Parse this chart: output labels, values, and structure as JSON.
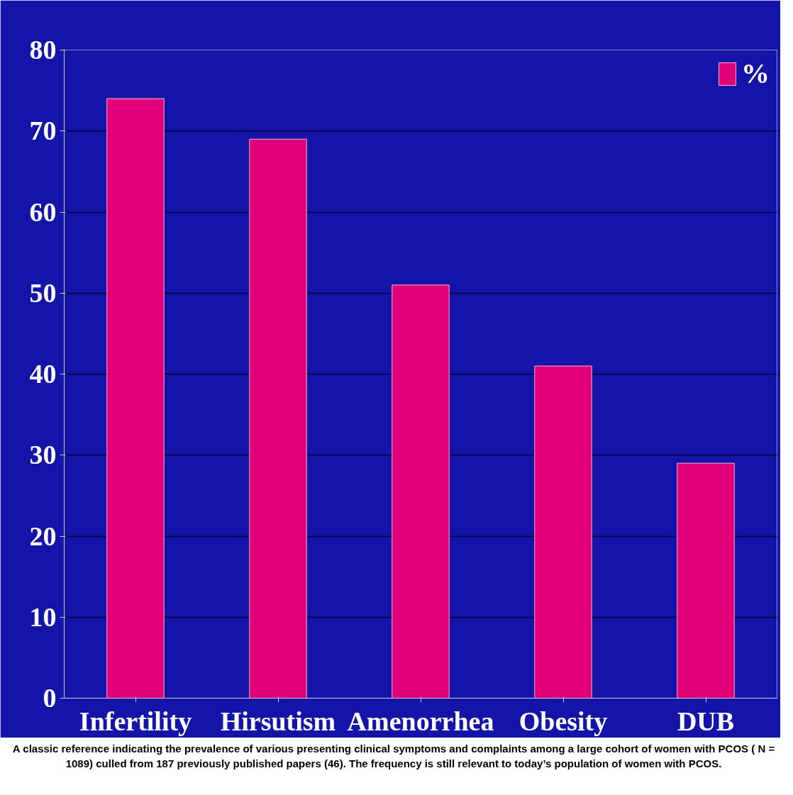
{
  "chart_data": {
    "type": "bar",
    "categories": [
      "Infertility",
      "Hirsutism",
      "Amenorrhea",
      "Obesity",
      "DUB"
    ],
    "series": [
      {
        "name": "%",
        "color": "#e0007a",
        "values": [
          74,
          69,
          51,
          41,
          29
        ]
      }
    ],
    "ylim": [
      0,
      80
    ],
    "yticks": [
      0,
      10,
      20,
      30,
      40,
      50,
      60,
      70,
      80
    ],
    "grid": "y",
    "legend": "top right",
    "annotations": [
      "A classic reference indicating the prevalence of various presenting clinical symptoms and complaints among a large cohort of women with PCOS ( N = 1089) culled from 187 previously published papers (46). The frequency is still relevant to today’s population of women with PCOS."
    ]
  }
}
